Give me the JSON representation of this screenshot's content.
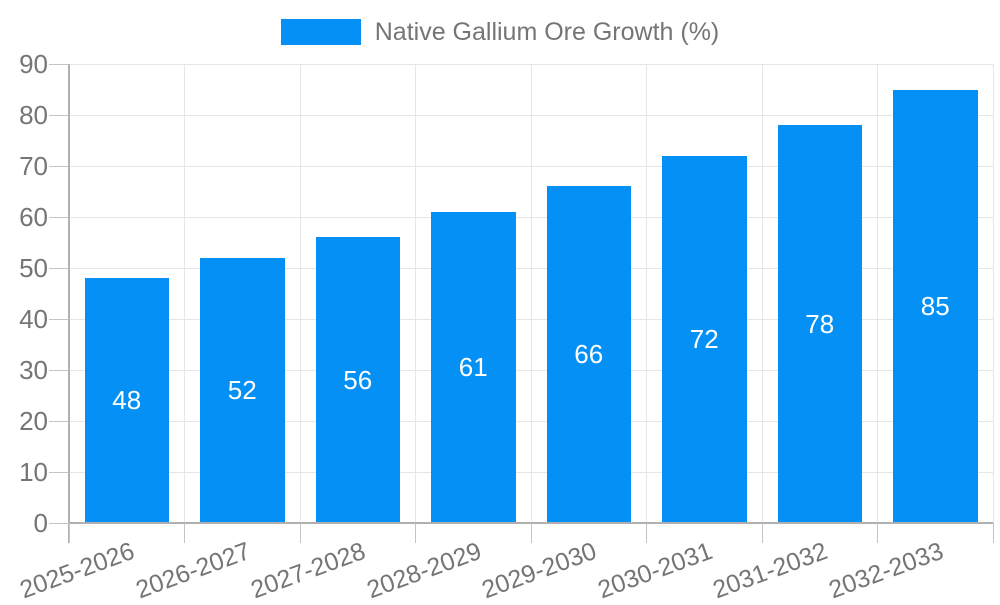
{
  "colors": {
    "bar": "#0590F5",
    "bar_label": "#FFFFFF",
    "grid": "#E6E6E6",
    "axis": "#B0B0B0",
    "tick": "#C4C4C4",
    "text": "#757575",
    "background": "#FFFFFF"
  },
  "chart_data": {
    "type": "bar",
    "title": "",
    "categories": [
      "2025-2026",
      "2026-2027",
      "2027-2028",
      "2028-2029",
      "2029-2030",
      "2030-2031",
      "2031-2032",
      "2032-2033"
    ],
    "series": [
      {
        "name": "Native Gallium Ore Growth (%)",
        "values": [
          48,
          52,
          56,
          61,
          66,
          72,
          78,
          85
        ]
      }
    ],
    "xlabel": "",
    "ylabel": "",
    "ylim": [
      0,
      90
    ],
    "yticks": [
      0,
      10,
      20,
      30,
      40,
      50,
      60,
      70,
      80,
      90
    ],
    "grid": true,
    "legend_position": "top",
    "x_tick_rotation_deg": -20,
    "value_label_position": "inside-center"
  }
}
